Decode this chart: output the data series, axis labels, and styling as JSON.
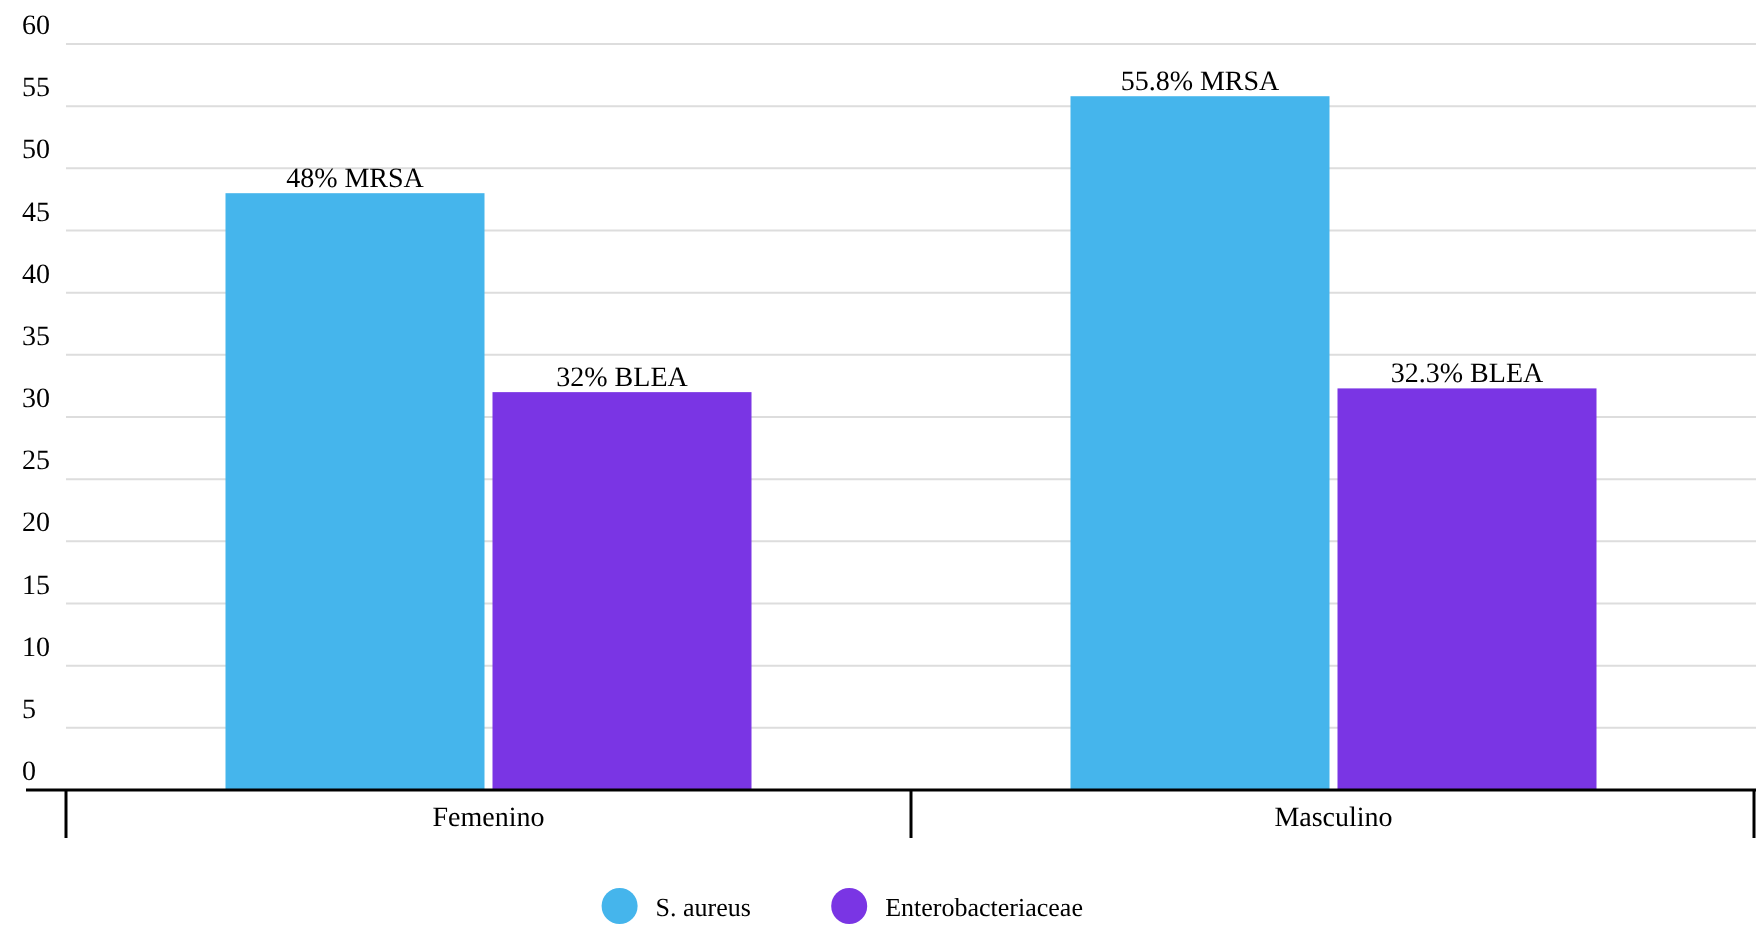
{
  "chart_data": {
    "type": "bar",
    "categories": [
      "Femenino",
      "Masculino"
    ],
    "series": [
      {
        "name": "S. aureus",
        "color": "#45b5ec",
        "values": [
          48,
          55.8
        ],
        "value_labels": [
          "48% MRSA",
          "55.8% MRSA"
        ]
      },
      {
        "name": "Enterobacteriaceae",
        "color": "#7a35e4",
        "values": [
          32,
          32.3
        ],
        "value_labels": [
          "32% BLEA",
          "32.3% BLEA"
        ]
      }
    ],
    "ylim": [
      0,
      60
    ],
    "yticks": [
      0,
      5,
      10,
      15,
      20,
      25,
      30,
      35,
      40,
      45,
      50,
      55,
      60
    ],
    "grid": "y",
    "legend": "bottom"
  }
}
